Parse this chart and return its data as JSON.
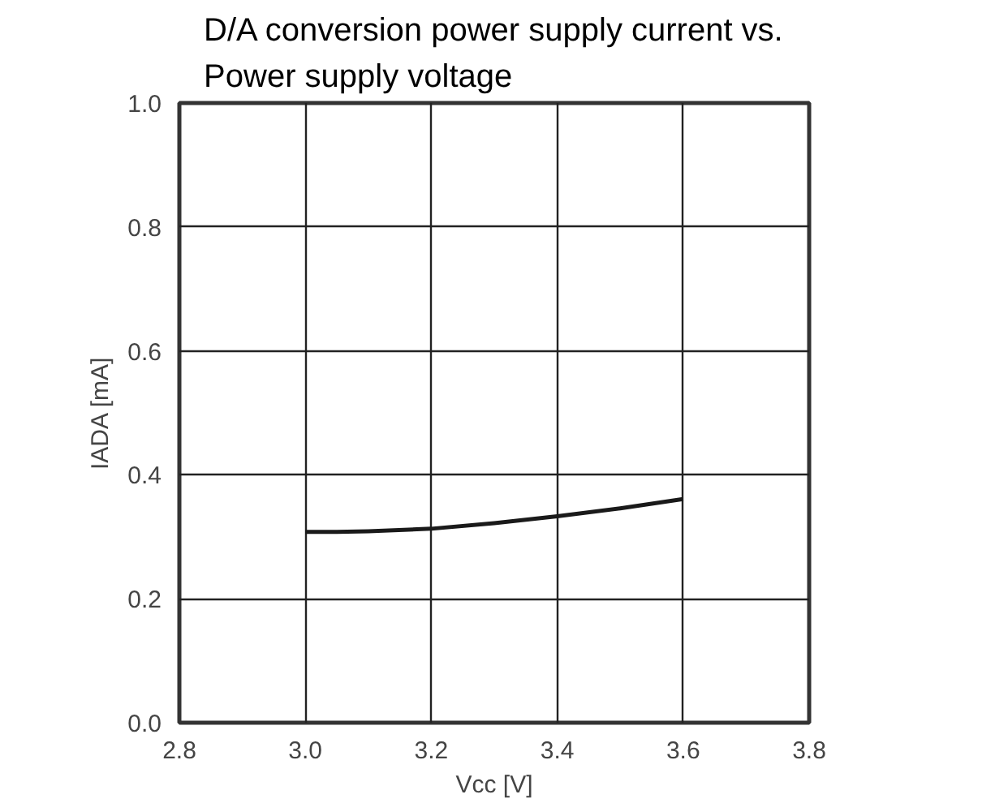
{
  "chart_data": {
    "type": "line",
    "title": "D/A conversion power supply current vs. Power supply voltage",
    "xlabel": "Vcc [V]",
    "ylabel": "IADA [mA]",
    "x": [
      3.0,
      3.05,
      3.1,
      3.2,
      3.3,
      3.4,
      3.5,
      3.6
    ],
    "series": [
      {
        "color": "#1a1a1a",
        "values": [
          0.308,
          0.308,
          0.309,
          0.313,
          0.322,
          0.333,
          0.346,
          0.361
        ]
      }
    ],
    "xlim": [
      2.8,
      3.8
    ],
    "xticks": [
      2.8,
      {
        "value": 3,
        "label": "3.0"
      },
      3.2,
      3.4,
      3.6,
      3.8
    ],
    "ylim": [
      0.0,
      1.0
    ],
    "yticks": [
      {
        "value": 0,
        "label": "0.0"
      },
      0.2,
      0.4,
      0.6,
      0.8,
      {
        "value": 1,
        "label": "1.0"
      }
    ],
    "grid": true,
    "line_style": "solid"
  }
}
